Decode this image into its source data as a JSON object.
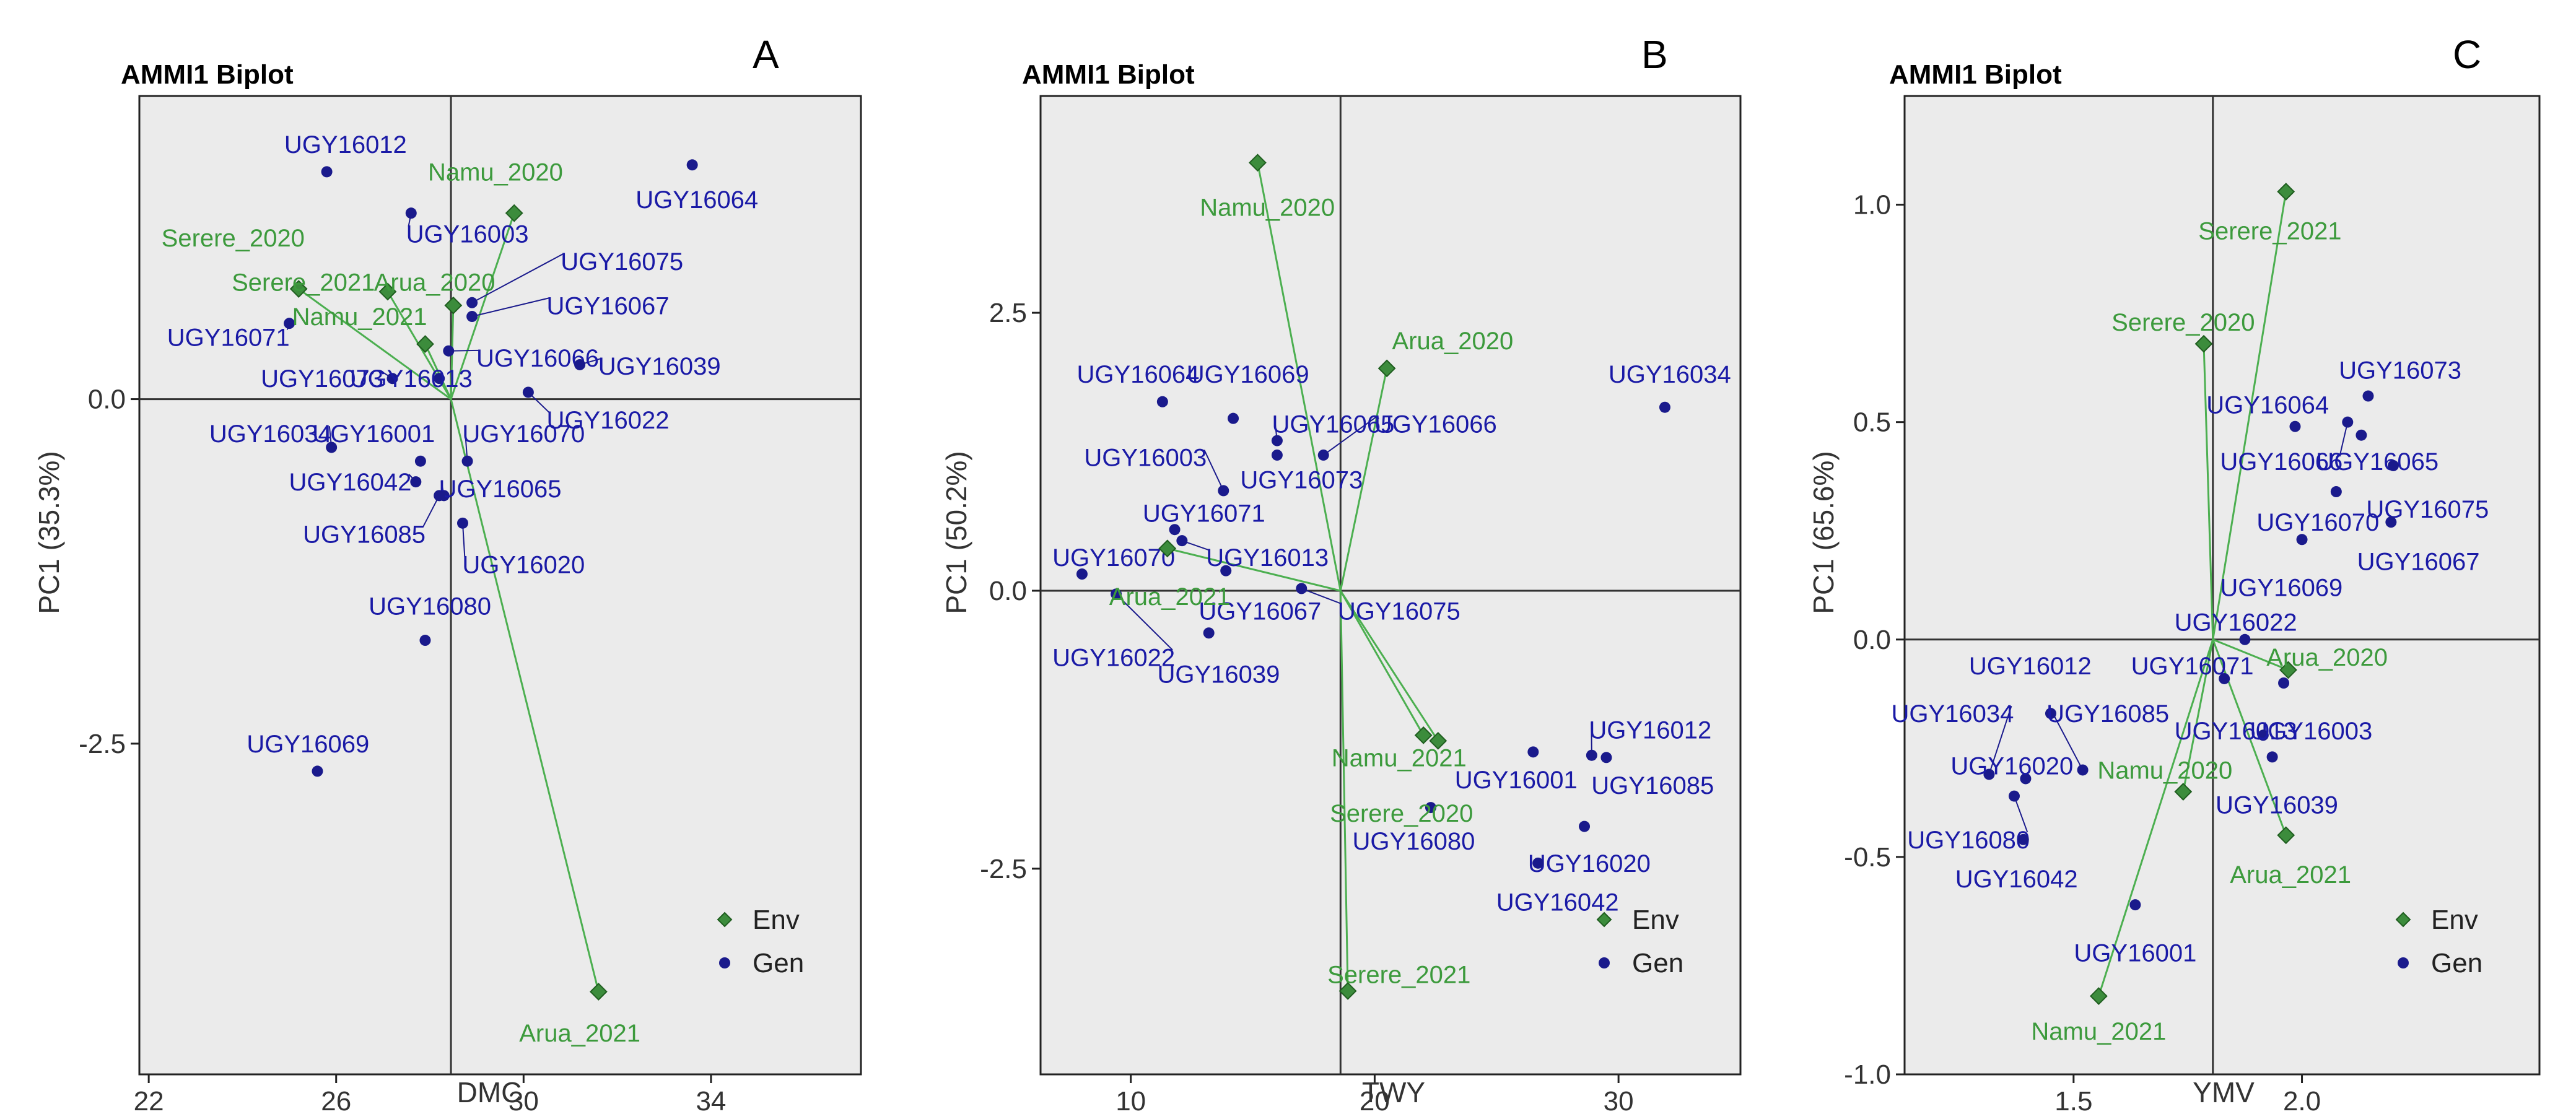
{
  "colors": {
    "env": "#3c8c3c",
    "envStroke": "#1f5e1f",
    "gen": "#1a1a8c",
    "vector": "#4caf50",
    "panelBg": "#ebebeb",
    "ref": "#333333"
  },
  "chart_data": [
    {
      "type": "scatter",
      "panel": "A",
      "title": "AMMI1 Biplot",
      "xlabel": "DMC",
      "ylabel": "PC1 (35.3%)",
      "xlim": [
        21.8,
        37.2
      ],
      "ylim": [
        -4.9,
        2.2
      ],
      "xticks": [
        22,
        26,
        30,
        34
      ],
      "xticklabels": [
        "22",
        "26",
        "30",
        "34"
      ],
      "yticks": [
        -2.5,
        0.0
      ],
      "yticklabels": [
        "-2.5",
        "0.0"
      ],
      "grand_mean": 28.45,
      "legend": [
        "Env",
        "Gen"
      ],
      "genotypes": [
        {
          "name": "UGY16012",
          "x": 25.8,
          "y": 1.65,
          "label": [
            26.2,
            1.85
          ]
        },
        {
          "name": "UGY16064",
          "x": 33.6,
          "y": 1.7,
          "label": [
            33.7,
            1.45
          ]
        },
        {
          "name": "UGY16003",
          "x": 27.6,
          "y": 1.35,
          "label": [
            28.8,
            1.2
          ]
        },
        {
          "name": "UGY16075",
          "x": 28.9,
          "y": 0.7,
          "label": [
            32.1,
            1.0
          ]
        },
        {
          "name": "UGY16067",
          "x": 28.9,
          "y": 0.6,
          "label": [
            31.8,
            0.68
          ]
        },
        {
          "name": "UGY16071",
          "x": 25.0,
          "y": 0.55,
          "label": [
            23.7,
            0.45
          ]
        },
        {
          "name": "UGY16066",
          "x": 28.4,
          "y": 0.35,
          "label": [
            30.3,
            0.3
          ]
        },
        {
          "name": "UGY16039",
          "x": 31.2,
          "y": 0.25,
          "label": [
            32.9,
            0.24
          ]
        },
        {
          "name": "UGY16073",
          "x": 27.2,
          "y": 0.15,
          "label": [
            25.7,
            0.15
          ]
        },
        {
          "name": "UGY16013",
          "x": 28.2,
          "y": 0.15,
          "label": [
            27.6,
            0.15
          ]
        },
        {
          "name": "UGY16022",
          "x": 30.1,
          "y": 0.05,
          "label": [
            31.8,
            -0.15
          ]
        },
        {
          "name": "UGY16034",
          "x": 25.9,
          "y": -0.35,
          "label": [
            24.6,
            -0.25
          ]
        },
        {
          "name": "UGY16001",
          "x": 27.8,
          "y": -0.45,
          "label": [
            26.8,
            -0.25
          ]
        },
        {
          "name": "UGY16070",
          "x": 28.8,
          "y": -0.45,
          "label": [
            30.0,
            -0.25
          ]
        },
        {
          "name": "UGY16042",
          "x": 27.7,
          "y": -0.6,
          "label": [
            26.3,
            -0.6
          ]
        },
        {
          "name": "UGY16065",
          "x": 28.3,
          "y": -0.7,
          "label": [
            29.5,
            -0.65
          ]
        },
        {
          "name": "UGY16085",
          "x": 28.2,
          "y": -0.7,
          "label": [
            26.6,
            -0.98
          ]
        },
        {
          "name": "UGY16020",
          "x": 28.7,
          "y": -0.9,
          "label": [
            30.0,
            -1.2
          ]
        },
        {
          "name": "UGY16080",
          "x": 27.9,
          "y": -1.75,
          "label": [
            28.0,
            -1.5
          ]
        },
        {
          "name": "UGY16069",
          "x": 25.6,
          "y": -2.7,
          "label": [
            25.4,
            -2.5
          ]
        }
      ],
      "environments": [
        {
          "name": "Namu_2020",
          "x": 29.8,
          "y": 1.35,
          "label": [
            29.4,
            1.65
          ]
        },
        {
          "name": "Serere_2020",
          "x": 25.2,
          "y": 0.8,
          "label": [
            23.8,
            1.17
          ]
        },
        {
          "name": "Serere_2021",
          "x": 27.1,
          "y": 0.78,
          "label": [
            25.3,
            0.85
          ]
        },
        {
          "name": "Arua_2020",
          "x": 28.5,
          "y": 0.68,
          "label": [
            28.1,
            0.85
          ]
        },
        {
          "name": "Namu_2021",
          "x": 27.9,
          "y": 0.4,
          "label": [
            26.5,
            0.6
          ]
        },
        {
          "name": "Arua_2021",
          "x": 31.6,
          "y": -4.3,
          "label": [
            31.2,
            -4.6
          ]
        }
      ]
    },
    {
      "type": "scatter",
      "panel": "B",
      "title": "AMMI1 Biplot",
      "xlabel": "TWY",
      "ylabel": "PC1 (50.2%)",
      "xlim": [
        6.3,
        35.0
      ],
      "ylim": [
        -4.35,
        4.45
      ],
      "xticks": [
        10,
        20,
        30
      ],
      "xticklabels": [
        "10",
        "20",
        "30"
      ],
      "yticks": [
        -2.5,
        0.0,
        2.5
      ],
      "yticklabels": [
        "-2.5",
        "0.0",
        "2.5"
      ],
      "grand_mean": 18.6,
      "legend": [
        "Env",
        "Gen"
      ],
      "genotypes": [
        {
          "name": "UGY16034",
          "x": 31.9,
          "y": 1.65,
          "label": [
            32.1,
            1.95
          ]
        },
        {
          "name": "UGY16064",
          "x": 11.3,
          "y": 1.7,
          "label": [
            10.3,
            1.95
          ]
        },
        {
          "name": "UGY16069",
          "x": 14.2,
          "y": 1.55,
          "label": [
            14.8,
            1.95
          ]
        },
        {
          "name": "UGY16065",
          "x": 16.0,
          "y": 1.35,
          "label": [
            18.3,
            1.5
          ]
        },
        {
          "name": "UGY16073",
          "x": 16.0,
          "y": 1.22,
          "label": [
            17.0,
            1.0
          ]
        },
        {
          "name": "UGY16066",
          "x": 17.9,
          "y": 1.22,
          "label": [
            22.5,
            1.5
          ]
        },
        {
          "name": "UGY16003",
          "x": 13.8,
          "y": 0.9,
          "label": [
            10.6,
            1.2
          ]
        },
        {
          "name": "UGY16071",
          "x": 11.8,
          "y": 0.55,
          "label": [
            13.0,
            0.7
          ]
        },
        {
          "name": "UGY16013",
          "x": 12.1,
          "y": 0.45,
          "label": [
            15.6,
            0.3
          ]
        },
        {
          "name": "UGY16070",
          "x": 8.0,
          "y": 0.15,
          "label": [
            9.3,
            0.3
          ]
        },
        {
          "name": "UGY16067",
          "x": 13.9,
          "y": 0.18,
          "label": [
            15.3,
            -0.18
          ]
        },
        {
          "name": "UGY16075",
          "x": 17.0,
          "y": 0.02,
          "label": [
            21.0,
            -0.18
          ]
        },
        {
          "name": "UGY16022",
          "x": 9.4,
          "y": -0.03,
          "label": [
            9.3,
            -0.6
          ]
        },
        {
          "name": "UGY16039",
          "x": 13.2,
          "y": -0.38,
          "label": [
            13.6,
            -0.75
          ]
        },
        {
          "name": "UGY16012",
          "x": 28.9,
          "y": -1.48,
          "label": [
            31.3,
            -1.25
          ]
        },
        {
          "name": "UGY16001",
          "x": 26.5,
          "y": -1.45,
          "label": [
            25.8,
            -1.7
          ]
        },
        {
          "name": "UGY16085",
          "x": 29.5,
          "y": -1.5,
          "label": [
            31.4,
            -1.75
          ]
        },
        {
          "name": "UGY16080",
          "x": 22.3,
          "y": -1.95,
          "label": [
            21.6,
            -2.25
          ]
        },
        {
          "name": "UGY16020",
          "x": 28.6,
          "y": -2.12,
          "label": [
            28.8,
            -2.45
          ]
        },
        {
          "name": "UGY16042",
          "x": 26.7,
          "y": -2.45,
          "label": [
            27.5,
            -2.8
          ]
        }
      ],
      "environments": [
        {
          "name": "Namu_2020",
          "x": 15.2,
          "y": 3.85,
          "label": [
            15.6,
            3.45
          ]
        },
        {
          "name": "Arua_2020",
          "x": 20.5,
          "y": 2.0,
          "label": [
            23.2,
            2.25
          ]
        },
        {
          "name": "Arua_2021",
          "x": 11.5,
          "y": 0.38,
          "label": [
            11.6,
            -0.05
          ]
        },
        {
          "name": "Namu_2021",
          "x": 22.0,
          "y": -1.3,
          "label": [
            21.0,
            -1.5
          ]
        },
        {
          "name": "Serere_2020",
          "x": 22.6,
          "y": -1.35,
          "label": [
            21.1,
            -2.0
          ]
        },
        {
          "name": "Serere_2021",
          "x": 18.9,
          "y": -3.6,
          "label": [
            21.0,
            -3.45
          ]
        }
      ]
    },
    {
      "type": "scatter",
      "panel": "C",
      "title": "AMMI1 Biplot",
      "xlabel": "YMV",
      "ylabel": "PC1 (65.6%)",
      "xlim": [
        1.13,
        2.52
      ],
      "ylim": [
        -1.0,
        1.25
      ],
      "xticks": [
        1.5,
        2.0
      ],
      "xticklabels": [
        "1.5",
        "2.0"
      ],
      "yticks": [
        -1.0,
        -0.5,
        0.0,
        0.5,
        1.0
      ],
      "yticklabels": [
        "-1.0",
        "-0.5",
        "0.0",
        "0.5",
        "1.0"
      ],
      "grand_mean": 1.805,
      "legend": [
        "Env",
        "Gen"
      ],
      "genotypes": [
        {
          "name": "UGY16073",
          "x": 2.145,
          "y": 0.56,
          "label": [
            2.215,
            0.62
          ]
        },
        {
          "name": "UGY16064",
          "x": 1.985,
          "y": 0.49,
          "label": [
            1.925,
            0.54
          ]
        },
        {
          "name": "UGY16066",
          "x": 2.1,
          "y": 0.5,
          "label": [
            1.955,
            0.41
          ]
        },
        {
          "name": "UGY16065",
          "x": 2.13,
          "y": 0.47,
          "label": [
            2.165,
            0.41
          ]
        },
        {
          "name": "UGY16075",
          "x": 2.2,
          "y": 0.4,
          "label": [
            2.275,
            0.3
          ]
        },
        {
          "name": "UGY16070",
          "x": 2.075,
          "y": 0.34,
          "label": [
            2.035,
            0.27
          ]
        },
        {
          "name": "UGY16067",
          "x": 2.195,
          "y": 0.27,
          "label": [
            2.255,
            0.18
          ]
        },
        {
          "name": "UGY16069",
          "x": 2.0,
          "y": 0.23,
          "label": [
            1.955,
            0.12
          ]
        },
        {
          "name": "UGY16022",
          "x": 1.875,
          "y": 0.0,
          "label": [
            1.855,
            0.04
          ]
        },
        {
          "name": "UGY16012",
          "x": 1.45,
          "y": -0.17,
          "label": [
            1.405,
            -0.06
          ]
        },
        {
          "name": "UGY16071",
          "x": 1.83,
          "y": -0.09,
          "label": [
            1.76,
            -0.06
          ]
        },
        {
          "name": "UGY16034",
          "x": 1.315,
          "y": -0.31,
          "label": [
            1.235,
            -0.17
          ]
        },
        {
          "name": "UGY16085",
          "x": 1.52,
          "y": -0.3,
          "label": [
            1.575,
            -0.17
          ]
        },
        {
          "name": "UGY16003",
          "x": 1.96,
          "y": -0.1,
          "label": [
            2.02,
            -0.21
          ]
        },
        {
          "name": "UGY16013",
          "x": 1.915,
          "y": -0.22,
          "label": [
            1.855,
            -0.21
          ]
        },
        {
          "name": "UGY16020",
          "x": 1.395,
          "y": -0.32,
          "label": [
            1.365,
            -0.29
          ]
        },
        {
          "name": "UGY16039",
          "x": 1.935,
          "y": -0.27,
          "label": [
            1.945,
            -0.38
          ]
        },
        {
          "name": "UGY16080",
          "x": 1.37,
          "y": -0.36,
          "label": [
            1.27,
            -0.46
          ]
        },
        {
          "name": "UGY16042",
          "x": 1.39,
          "y": -0.46,
          "label": [
            1.375,
            -0.55
          ]
        },
        {
          "name": "UGY16001",
          "x": 1.635,
          "y": -0.61,
          "label": [
            1.635,
            -0.72
          ]
        }
      ],
      "environments": [
        {
          "name": "Serere_2021",
          "x": 1.965,
          "y": 1.03,
          "label": [
            1.93,
            0.94
          ]
        },
        {
          "name": "Serere_2020",
          "x": 1.785,
          "y": 0.68,
          "label": [
            1.74,
            0.73
          ]
        },
        {
          "name": "Arua_2020",
          "x": 1.97,
          "y": -0.07,
          "label": [
            2.055,
            -0.04
          ]
        },
        {
          "name": "Namu_2020",
          "x": 1.74,
          "y": -0.35,
          "label": [
            1.7,
            -0.3
          ]
        },
        {
          "name": "Arua_2021",
          "x": 1.965,
          "y": -0.45,
          "label": [
            1.975,
            -0.54
          ]
        },
        {
          "name": "Namu_2021",
          "x": 1.555,
          "y": -0.82,
          "label": [
            1.555,
            -0.9
          ]
        }
      ]
    }
  ]
}
